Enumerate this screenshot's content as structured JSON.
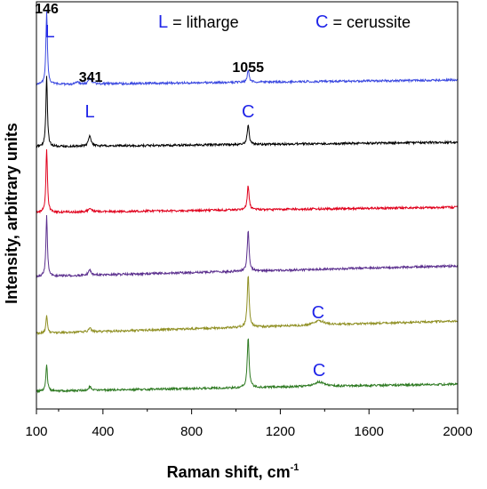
{
  "chart_data": {
    "type": "line",
    "title": "",
    "xlabel": "Raman shift, cm",
    "xlabel_superscript": "-1",
    "ylabel": "Intensity, arbitrary units",
    "xlim": [
      100,
      2000
    ],
    "xticks": [
      "100",
      "400",
      "800",
      "1200",
      "1600",
      "2000"
    ],
    "xtick_values": [
      100,
      400,
      800,
      1200,
      1600,
      2000
    ],
    "grid": false,
    "legend_text": [
      {
        "letter": "L",
        "rest": " = litharge"
      },
      {
        "letter": "C",
        "rest": " = cerussite"
      }
    ],
    "series": [
      {
        "color": "#3a48e0",
        "baseline": 95,
        "tilt": -5,
        "peaks": [
          {
            "x": 146,
            "height": 82,
            "width": 4
          },
          {
            "x": 285,
            "height": 2,
            "width": 8
          },
          {
            "x": 341,
            "height": 7,
            "width": 7
          },
          {
            "x": 1055,
            "height": 14,
            "width": 5
          }
        ]
      },
      {
        "color": "#000000",
        "baseline": 165,
        "tilt": -5,
        "peaks": [
          {
            "x": 146,
            "height": 80,
            "width": 4
          },
          {
            "x": 341,
            "height": 12,
            "width": 7
          },
          {
            "x": 1055,
            "height": 23,
            "width": 5
          }
        ]
      },
      {
        "color": "#e0001c",
        "baseline": 239,
        "tilt": -6,
        "peaks": [
          {
            "x": 146,
            "height": 72,
            "width": 4
          },
          {
            "x": 341,
            "height": 5,
            "width": 7
          },
          {
            "x": 1055,
            "height": 27,
            "width": 5
          }
        ]
      },
      {
        "color": "#5b2f8e",
        "baseline": 311,
        "tilt": -12,
        "peaks": [
          {
            "x": 146,
            "height": 68,
            "width": 4
          },
          {
            "x": 341,
            "height": 6,
            "width": 7
          },
          {
            "x": 1055,
            "height": 45,
            "width": 5
          }
        ]
      },
      {
        "color": "#8f8f22",
        "baseline": 375,
        "tilt": -14,
        "peaks": [
          {
            "x": 146,
            "height": 20,
            "width": 4
          },
          {
            "x": 341,
            "height": 4,
            "width": 7
          },
          {
            "x": 1055,
            "height": 58,
            "width": 5
          },
          {
            "x": 1375,
            "height": 5,
            "width": 28
          }
        ]
      },
      {
        "color": "#2e7a22",
        "baseline": 440,
        "tilt": -8,
        "peaks": [
          {
            "x": 146,
            "height": 30,
            "width": 4
          },
          {
            "x": 341,
            "height": 4,
            "width": 7
          },
          {
            "x": 1055,
            "height": 56,
            "width": 5
          },
          {
            "x": 1375,
            "height": 5,
            "width": 28
          }
        ]
      }
    ],
    "annotations": [
      {
        "text": "146",
        "x": 146,
        "series": 0,
        "kind": "number",
        "dy": -80
      },
      {
        "text": "L",
        "x": 160,
        "series": 0,
        "kind": "letter",
        "dy": -53
      },
      {
        "text": "341",
        "x": 345,
        "series": 0,
        "kind": "number",
        "dy": -3
      },
      {
        "text": "1055",
        "x": 1055,
        "series": 0,
        "kind": "number",
        "dy": -14
      },
      {
        "text": "L",
        "x": 341,
        "series": 1,
        "kind": "letter",
        "dy": -33
      },
      {
        "text": "C",
        "x": 1055,
        "series": 1,
        "kind": "letter",
        "dy": -33
      },
      {
        "text": "C",
        "x": 1370,
        "series": 4,
        "kind": "letter",
        "dy": -17
      },
      {
        "text": "C",
        "x": 1375,
        "series": 5,
        "kind": "letter",
        "dy": -17
      }
    ]
  }
}
